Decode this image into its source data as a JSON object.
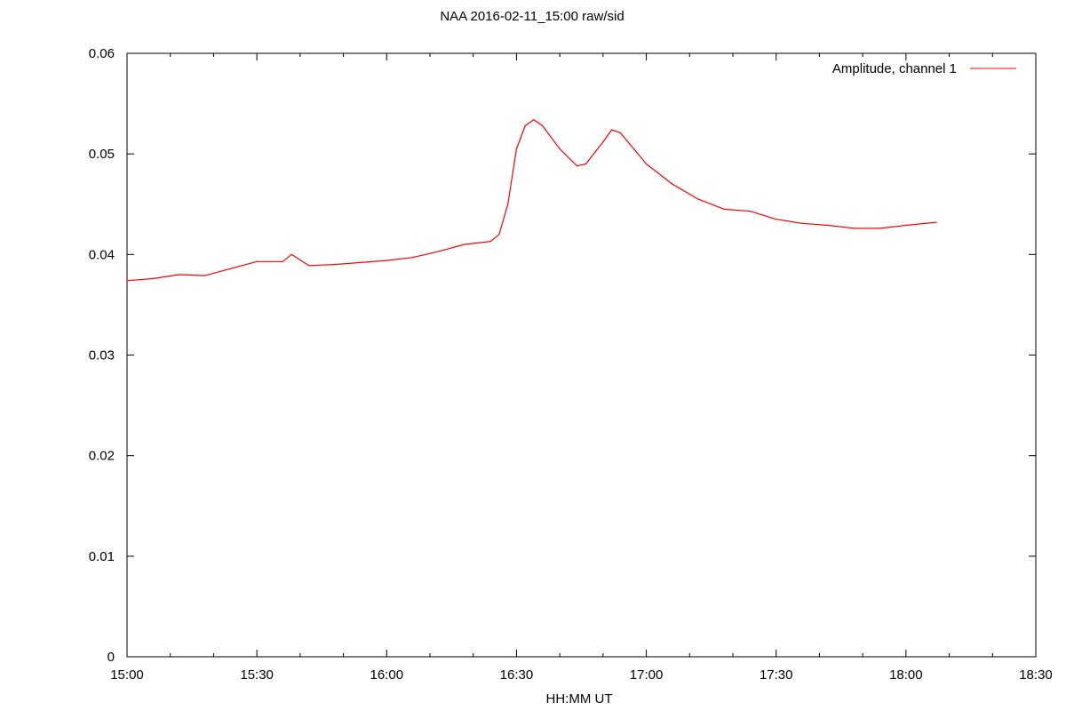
{
  "chart_data": {
    "type": "line",
    "title": "NAA 2016-02-11_15:00 raw/sid",
    "xlabel": "HH:MM UT",
    "ylabel": "",
    "x_unit": "HH:MM UT",
    "xlim": [
      "15:00",
      "18:30"
    ],
    "ylim": [
      0,
      0.06
    ],
    "x_ticks": [
      "15:00",
      "15:30",
      "16:00",
      "16:30",
      "17:00",
      "17:30",
      "18:00",
      "18:30"
    ],
    "y_ticks": [
      "0",
      "0.01",
      "0.02",
      "0.03",
      "0.04",
      "0.05",
      "0.06"
    ],
    "grid": false,
    "legend_position": "top-right",
    "series": [
      {
        "name": "Amplitude, channel 1",
        "color": "#ff0000",
        "points": [
          [
            "15:00",
            0.0374
          ],
          [
            "15:06",
            0.0376
          ],
          [
            "15:12",
            0.038
          ],
          [
            "15:18",
            0.0379
          ],
          [
            "15:24",
            0.0386
          ],
          [
            "15:30",
            0.0393
          ],
          [
            "15:36",
            0.0393
          ],
          [
            "15:38",
            0.04
          ],
          [
            "15:42",
            0.0389
          ],
          [
            "15:48",
            0.039
          ],
          [
            "15:54",
            0.0392
          ],
          [
            "16:00",
            0.0394
          ],
          [
            "16:06",
            0.0397
          ],
          [
            "16:12",
            0.0403
          ],
          [
            "16:18",
            0.041
          ],
          [
            "16:24",
            0.0413
          ],
          [
            "16:26",
            0.042
          ],
          [
            "16:28",
            0.045
          ],
          [
            "16:30",
            0.0505
          ],
          [
            "16:32",
            0.0528
          ],
          [
            "16:34",
            0.0534
          ],
          [
            "16:36",
            0.0528
          ],
          [
            "16:40",
            0.0505
          ],
          [
            "16:44",
            0.0488
          ],
          [
            "16:46",
            0.049
          ],
          [
            "16:50",
            0.0512
          ],
          [
            "16:52",
            0.0524
          ],
          [
            "16:54",
            0.0521
          ],
          [
            "17:00",
            0.049
          ],
          [
            "17:06",
            0.047
          ],
          [
            "17:12",
            0.0455
          ],
          [
            "17:18",
            0.0445
          ],
          [
            "17:24",
            0.0443
          ],
          [
            "17:30",
            0.0435
          ],
          [
            "17:36",
            0.0431
          ],
          [
            "17:42",
            0.0429
          ],
          [
            "17:48",
            0.0426
          ],
          [
            "17:54",
            0.0426
          ],
          [
            "18:00",
            0.0429
          ],
          [
            "18:07",
            0.0432
          ]
        ]
      }
    ]
  }
}
